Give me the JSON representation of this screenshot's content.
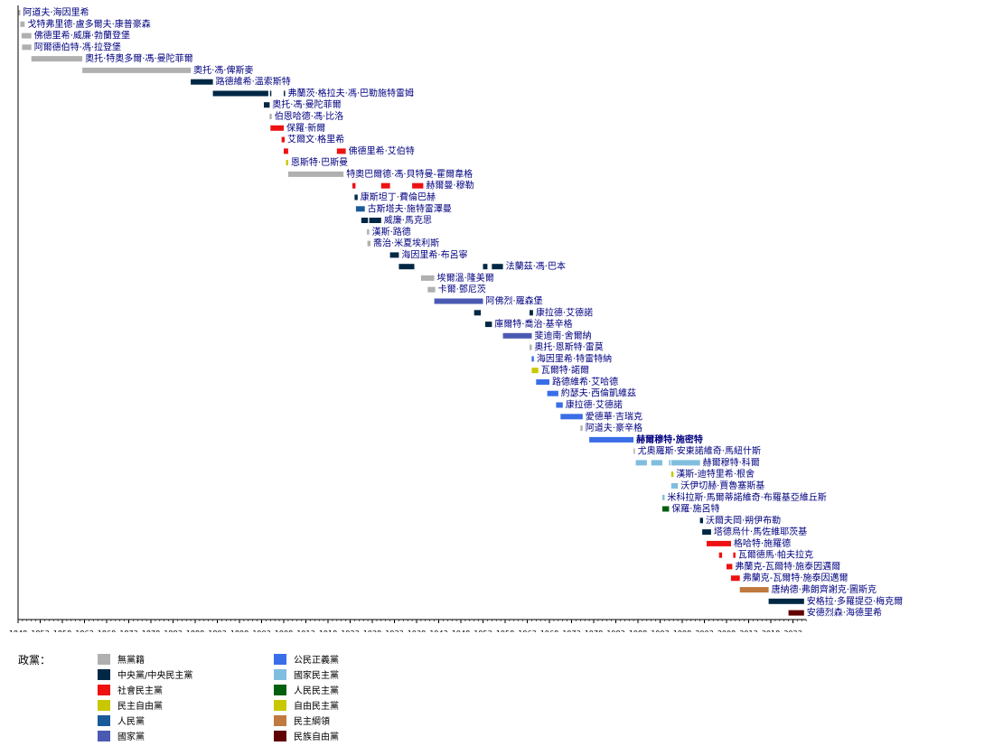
{
  "legend_title": "政黨：",
  "parties": [
    {
      "key": "none",
      "name": "無黨籍",
      "color": "#b0b0b0"
    },
    {
      "key": "centre",
      "name": "中央黨/中央民主黨",
      "color": "#002845"
    },
    {
      "key": "sd",
      "name": "社會民主黨",
      "color": "#ee1111"
    },
    {
      "key": "dfp",
      "name": "民主自由黨",
      "color": "#c8c800"
    },
    {
      "key": "people",
      "name": "人民黨",
      "color": "#1a5a9a"
    },
    {
      "key": "national",
      "name": "國家黨",
      "color": "#4a5ab2"
    },
    {
      "key": "cvp",
      "name": "公民正義黨",
      "color": "#3a6ee8"
    },
    {
      "key": "ndp",
      "name": "國家民主黨",
      "color": "#80bee0"
    },
    {
      "key": "pdp",
      "name": "人民民主黨",
      "color": "#006010"
    },
    {
      "key": "free",
      "name": "自由民主黨",
      "color": "#c8c800"
    },
    {
      "key": "dl",
      "name": "民主綱領",
      "color": "#c07a40"
    },
    {
      "key": "nfp",
      "name": "民族自由黨",
      "color": "#600000"
    }
  ],
  "chart_data": {
    "type": "bar",
    "orientation": "gantt",
    "x_range": [
      1848,
      2026
    ],
    "x_ticks": [
      1848,
      1853,
      1858,
      1863,
      1868,
      1873,
      1878,
      1883,
      1888,
      1893,
      1898,
      1903,
      1908,
      1913,
      1918,
      1923,
      1928,
      1933,
      1938,
      1943,
      1948,
      1953,
      1958,
      1963,
      1968,
      1973,
      1978,
      1983,
      1988,
      1993,
      1998,
      2003,
      2008,
      2013,
      2018,
      2023
    ],
    "rows": [
      {
        "name": "阿道夫·海因里希",
        "party": "none",
        "terms": [
          [
            1848.0,
            1848.5
          ]
        ]
      },
      {
        "name": "戈特弗里德·盧多爾夫·康普豪森",
        "party": "none",
        "terms": [
          [
            1848.5,
            1849.5
          ]
        ]
      },
      {
        "name": "佛德里希·威廉·勃蘭登堡",
        "party": "none",
        "terms": [
          [
            1848.8,
            1851.0
          ]
        ]
      },
      {
        "name": "阿爾德伯特·馮·拉登堡",
        "party": "none",
        "terms": [
          [
            1848.9,
            1851.0
          ]
        ]
      },
      {
        "name": "奧托·特奧多爾·馮·曼陀菲爾",
        "party": "none",
        "terms": [
          [
            1851.0,
            1862.5
          ]
        ]
      },
      {
        "name": "奧托·馮·俾斯麥",
        "party": "none",
        "terms": [
          [
            1862.5,
            1887.0
          ]
        ]
      },
      {
        "name": "路德維希·溫索斯特",
        "party": "centre",
        "terms": [
          [
            1887.0,
            1892.0
          ]
        ]
      },
      {
        "name": "弗蘭茨·格拉夫·馮·巴勒施特雷姆",
        "party": "centre",
        "terms": [
          [
            1892.0,
            1904.5
          ],
          [
            1904.9,
            1905.1
          ],
          [
            1908.0,
            1908.3
          ]
        ]
      },
      {
        "name": "奧托·馮·曼陀菲爾",
        "party": "centre",
        "terms": [
          [
            1903.5,
            1904.8
          ]
        ]
      },
      {
        "name": "伯恩哈德·馮·比洛",
        "party": "none",
        "terms": [
          [
            1904.8,
            1905.3
          ]
        ]
      },
      {
        "name": "保羅·新爾",
        "party": "sd",
        "terms": [
          [
            1905.0,
            1908.0
          ]
        ]
      },
      {
        "name": "艾爾文·格里希",
        "party": "sd",
        "terms": [
          [
            1907.5,
            1908.2
          ]
        ]
      },
      {
        "name": "佛德里希·艾伯特",
        "party": "sd",
        "terms": [
          [
            1908.0,
            1909.0
          ],
          [
            1920.0,
            1922.0
          ]
        ]
      },
      {
        "name": "恩斯特·巴斯曼",
        "party": "dfp",
        "terms": [
          [
            1908.5,
            1909.0
          ]
        ]
      },
      {
        "name": "特奧巴爾德·馮·貝特曼-霍爾韋格",
        "party": "none",
        "terms": [
          [
            1909.0,
            1921.5
          ]
        ]
      },
      {
        "name": "赫爾曼·穆勒",
        "party": "sd",
        "terms": [
          [
            1923.5,
            1924.2
          ],
          [
            1930.0,
            1932.0
          ],
          [
            1937.0,
            1939.5
          ]
        ]
      },
      {
        "name": "康斯坦丁·費倫巴赫",
        "party": "centre",
        "terms": [
          [
            1924.0,
            1924.7
          ]
        ]
      },
      {
        "name": "古斯塔夫·施特雷澤曼",
        "party": "people",
        "terms": [
          [
            1924.3,
            1926.3
          ]
        ]
      },
      {
        "name": "威廉·馬克思",
        "party": "centre",
        "terms": [
          [
            1925.5,
            1927.0
          ],
          [
            1927.3,
            1930.0
          ]
        ]
      },
      {
        "name": "漢斯·路德",
        "party": "none",
        "terms": [
          [
            1926.8,
            1927.3
          ]
        ]
      },
      {
        "name": "喬治·米夏埃利斯",
        "party": "none",
        "terms": [
          [
            1926.9,
            1927.6
          ]
        ]
      },
      {
        "name": "海因里希·布呂寧",
        "party": "centre",
        "terms": [
          [
            1932.0,
            1934.0
          ]
        ]
      },
      {
        "name": "法蘭茲·馮·巴本",
        "party": "centre",
        "terms": [
          [
            1934.0,
            1937.5
          ],
          [
            1953.0,
            1954.0
          ],
          [
            1955.0,
            1957.5
          ]
        ]
      },
      {
        "name": "埃爾溫·隆美爾",
        "party": "none",
        "terms": [
          [
            1939.0,
            1942.0
          ]
        ]
      },
      {
        "name": "卡爾·鄧尼茨",
        "party": "none",
        "terms": [
          [
            1940.5,
            1942.2
          ]
        ]
      },
      {
        "name": "阿佛烈·羅森堡",
        "party": "national",
        "terms": [
          [
            1942.0,
            1953.0
          ]
        ]
      },
      {
        "name": "康拉德·艾德諾",
        "party": "centre",
        "terms": [
          [
            1951.0,
            1952.5
          ],
          [
            1963.5,
            1964.3
          ]
        ]
      },
      {
        "name": "庫爾特·喬治·基辛格",
        "party": "centre",
        "terms": [
          [
            1953.5,
            1955.0
          ]
        ]
      },
      {
        "name": "斐迪南·舍爾納",
        "party": "national",
        "terms": [
          [
            1957.5,
            1964.0
          ]
        ]
      },
      {
        "name": "奧托·恩斯特·雷莫",
        "party": "none",
        "terms": [
          [
            1963.5,
            1964.0
          ]
        ]
      },
      {
        "name": "海因里希·特雷特納",
        "party": "cvp",
        "terms": [
          [
            1964.0,
            1964.5
          ]
        ]
      },
      {
        "name": "瓦爾特·諾爾",
        "party": "dfp",
        "terms": [
          [
            1964.0,
            1965.5
          ]
        ]
      },
      {
        "name": "路德維希·艾哈德",
        "party": "cvp",
        "terms": [
          [
            1965.0,
            1968.0
          ]
        ]
      },
      {
        "name": "約瑟夫·西倫凱維茲",
        "party": "cvp",
        "terms": [
          [
            1967.5,
            1970.0
          ]
        ]
      },
      {
        "name": "康拉德·艾德諾",
        "party": "cvp",
        "terms": [
          [
            1969.5,
            1971.0
          ]
        ]
      },
      {
        "name": "愛德華·吉瑞克",
        "party": "cvp",
        "terms": [
          [
            1970.5,
            1975.5
          ]
        ]
      },
      {
        "name": "阿道夫·豪辛格",
        "party": "none",
        "terms": [
          [
            1975.0,
            1975.5
          ]
        ]
      },
      {
        "name": "赫爾穆特·施密特",
        "party": "cvp",
        "terms": [
          [
            1977.0,
            1987.0
          ]
        ]
      },
      {
        "name": "尤奧羅斯·安東諾維奇·馬紐什斯",
        "party": "none",
        "terms": [
          [
            1987.0,
            1987.3
          ]
        ]
      },
      {
        "name": "赫爾穆特·科爾",
        "party": "ndp",
        "terms": [
          [
            1987.5,
            1990.0
          ],
          [
            1991.0,
            1993.5
          ],
          [
            1995.0,
            1995.3
          ],
          [
            1995.5,
            2002.0
          ]
        ]
      },
      {
        "name": "漢斯-迪特里希·根舍",
        "party": "dfp",
        "terms": [
          [
            1995.5,
            1996.0
          ]
        ]
      },
      {
        "name": "沃伊切赫·賈魯塞斯基",
        "party": "ndp",
        "terms": [
          [
            1995.5,
            1997.0
          ]
        ]
      },
      {
        "name": "米科拉斯·馬爾蒂諾維奇·布羅基亞維丘斯",
        "party": "ndp",
        "terms": [
          [
            1993.5,
            1994.0
          ]
        ]
      },
      {
        "name": "保羅·施呂特",
        "party": "pdp",
        "terms": [
          [
            1993.5,
            1995.0
          ]
        ]
      },
      {
        "name": "沃爾夫岡·朔伊布勒",
        "party": "centre",
        "terms": [
          [
            2002.0,
            2002.7
          ]
        ]
      },
      {
        "name": "塔德烏什·馬佐維耶茨基",
        "party": "centre",
        "terms": [
          [
            2002.5,
            2004.5
          ]
        ]
      },
      {
        "name": "格哈特·施羅德",
        "party": "sd",
        "terms": [
          [
            2003.5,
            2009.0
          ]
        ]
      },
      {
        "name": "瓦爾德馬·帕夫拉克",
        "party": "sd",
        "terms": [
          [
            2006.3,
            2007.0
          ],
          [
            2009.5,
            2010.0
          ]
        ]
      },
      {
        "name": "弗蘭克-瓦爾特·施泰因邁爾",
        "party": "sd",
        "terms": [
          [
            2008.0,
            2009.3
          ]
        ]
      },
      {
        "name": "弗蘭克-瓦爾特·施泰因邁爾",
        "party": "sd",
        "terms": [
          [
            2009.0,
            2011.0
          ]
        ]
      },
      {
        "name": "唐納德·弗朗齊謝克·圖斯克",
        "party": "dl",
        "terms": [
          [
            2011.0,
            2017.5
          ]
        ]
      },
      {
        "name": "安格拉·多羅提亞·梅克爾",
        "party": "centre",
        "terms": [
          [
            2017.5,
            2025.5
          ]
        ]
      },
      {
        "name": "安德烈森·海德里希",
        "party": "nfp",
        "terms": [
          [
            2022.0,
            2025.5
          ]
        ]
      }
    ]
  }
}
